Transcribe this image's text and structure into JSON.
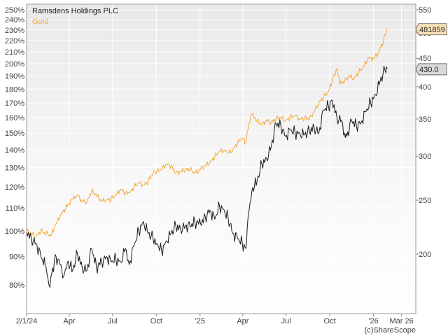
{
  "chart_data": {
    "type": "line",
    "title": "",
    "grid": true,
    "legend_placement": "top-left",
    "x_axis": {
      "min": "2024-01-02",
      "max": "2026-03-31",
      "ticks": [
        {
          "date": "2024-01-02",
          "label": "2/1/24"
        },
        {
          "date": "2024-04-01",
          "label": "Apr"
        },
        {
          "date": "2024-07-01",
          "label": "Jul"
        },
        {
          "date": "2024-10-01",
          "label": "Oct"
        },
        {
          "date": "2025-01-01",
          "label": "'25"
        },
        {
          "date": "2025-04-01",
          "label": "Apr"
        },
        {
          "date": "2025-07-01",
          "label": "Jul"
        },
        {
          "date": "2025-10-01",
          "label": "Oct"
        },
        {
          "date": "2026-01-01",
          "label": "'26"
        },
        {
          "date": "2026-03-01",
          "label": "Mar 26"
        }
      ]
    },
    "y_left": {
      "scale": "log",
      "range_percent": [
        72,
        252
      ],
      "ticks": [
        {
          "value": 80,
          "label": "80%"
        },
        {
          "value": 90,
          "label": "90%"
        },
        {
          "value": 100,
          "label": "100%"
        },
        {
          "value": 110,
          "label": "110%"
        },
        {
          "value": 120,
          "label": "120%"
        },
        {
          "value": 130,
          "label": "130%"
        },
        {
          "value": 140,
          "label": "140%"
        },
        {
          "value": 150,
          "label": "150%"
        },
        {
          "value": 160,
          "label": "160%"
        },
        {
          "value": 170,
          "label": "170%"
        },
        {
          "value": 180,
          "label": "180%"
        },
        {
          "value": 190,
          "label": "190%"
        },
        {
          "value": 200,
          "label": "200%"
        },
        {
          "value": 210,
          "label": "210%"
        },
        {
          "value": 220,
          "label": "220%"
        },
        {
          "value": 230,
          "label": "230%"
        },
        {
          "value": 240,
          "label": "240%"
        },
        {
          "value": 250,
          "label": "250%"
        }
      ]
    },
    "y_right": {
      "scale": "log",
      "ticks": [
        {
          "value": 200,
          "label": "200"
        },
        {
          "value": 250,
          "label": "250"
        },
        {
          "value": 300,
          "label": "300"
        },
        {
          "value": 350,
          "label": "350"
        },
        {
          "value": 400,
          "label": "400"
        },
        {
          "value": 450,
          "label": "450"
        },
        {
          "value": 500,
          "label": "500"
        },
        {
          "value": 550,
          "label": "550"
        }
      ]
    },
    "series": [
      {
        "name": "Ramsdens Holdings PLC",
        "color": "#1a1a1a",
        "last_value_label": "430.0",
        "points": [
          [
            "2024-01-02",
            100
          ],
          [
            "2024-01-12",
            97
          ],
          [
            "2024-01-22",
            95
          ],
          [
            "2024-02-01",
            90
          ],
          [
            "2024-02-12",
            86
          ],
          [
            "2024-02-18",
            80
          ],
          [
            "2024-02-24",
            84
          ],
          [
            "2024-03-04",
            90
          ],
          [
            "2024-03-14",
            87
          ],
          [
            "2024-03-20",
            83
          ],
          [
            "2024-03-28",
            88
          ],
          [
            "2024-04-08",
            85
          ],
          [
            "2024-04-18",
            91
          ],
          [
            "2024-04-28",
            86
          ],
          [
            "2024-05-08",
            85
          ],
          [
            "2024-05-18",
            93
          ],
          [
            "2024-05-28",
            86
          ],
          [
            "2024-06-08",
            88
          ],
          [
            "2024-06-18",
            90
          ],
          [
            "2024-06-28",
            88
          ],
          [
            "2024-07-08",
            89
          ],
          [
            "2024-07-18",
            88
          ],
          [
            "2024-07-28",
            93
          ],
          [
            "2024-08-05",
            87
          ],
          [
            "2024-08-15",
            94
          ],
          [
            "2024-08-25",
            100
          ],
          [
            "2024-09-04",
            104
          ],
          [
            "2024-09-14",
            99
          ],
          [
            "2024-09-24",
            97
          ],
          [
            "2024-10-02",
            95
          ],
          [
            "2024-10-12",
            92
          ],
          [
            "2024-10-22",
            96
          ],
          [
            "2024-11-01",
            99
          ],
          [
            "2024-11-11",
            102
          ],
          [
            "2024-11-21",
            101
          ],
          [
            "2024-12-01",
            102
          ],
          [
            "2024-12-11",
            102
          ],
          [
            "2024-12-21",
            104
          ],
          [
            "2025-01-02",
            103
          ],
          [
            "2025-01-12",
            106
          ],
          [
            "2025-01-22",
            109
          ],
          [
            "2025-02-01",
            105
          ],
          [
            "2025-02-11",
            111
          ],
          [
            "2025-02-21",
            109
          ],
          [
            "2025-03-01",
            106
          ],
          [
            "2025-03-11",
            99
          ],
          [
            "2025-03-21",
            97
          ],
          [
            "2025-03-31",
            95
          ],
          [
            "2025-04-07",
            93
          ],
          [
            "2025-04-12",
            106
          ],
          [
            "2025-04-20",
            118
          ],
          [
            "2025-05-01",
            123
          ],
          [
            "2025-05-11",
            132
          ],
          [
            "2025-05-21",
            135
          ],
          [
            "2025-05-31",
            142
          ],
          [
            "2025-06-10",
            156
          ],
          [
            "2025-06-20",
            155
          ],
          [
            "2025-06-30",
            148
          ],
          [
            "2025-07-10",
            152
          ],
          [
            "2025-07-20",
            150
          ],
          [
            "2025-07-30",
            150
          ],
          [
            "2025-08-09",
            149
          ],
          [
            "2025-08-19",
            151
          ],
          [
            "2025-08-29",
            154
          ],
          [
            "2025-09-08",
            150
          ],
          [
            "2025-09-18",
            165
          ],
          [
            "2025-09-28",
            168
          ],
          [
            "2025-10-06",
            172
          ],
          [
            "2025-10-16",
            160
          ],
          [
            "2025-10-26",
            158
          ],
          [
            "2025-11-01",
            150
          ],
          [
            "2025-11-06",
            148
          ],
          [
            "2025-11-16",
            158
          ],
          [
            "2025-11-26",
            155
          ],
          [
            "2025-12-06",
            157
          ],
          [
            "2025-12-16",
            164
          ],
          [
            "2025-12-26",
            170
          ],
          [
            "2026-01-05",
            176
          ],
          [
            "2026-01-15",
            186
          ],
          [
            "2026-01-25",
            195
          ],
          [
            "2026-01-30",
            196
          ]
        ]
      },
      {
        "name": "Gold",
        "color": "#f2a93b",
        "last_value_label": "481859",
        "points": [
          [
            "2024-01-02",
            100
          ],
          [
            "2024-01-12",
            99
          ],
          [
            "2024-01-22",
            98
          ],
          [
            "2024-02-01",
            100
          ],
          [
            "2024-02-12",
            99
          ],
          [
            "2024-02-22",
            98
          ],
          [
            "2024-03-04",
            103
          ],
          [
            "2024-03-14",
            107
          ],
          [
            "2024-03-24",
            110
          ],
          [
            "2024-04-08",
            114
          ],
          [
            "2024-04-18",
            116
          ],
          [
            "2024-04-28",
            113
          ],
          [
            "2024-05-08",
            113
          ],
          [
            "2024-05-18",
            118
          ],
          [
            "2024-05-28",
            116
          ],
          [
            "2024-06-08",
            113
          ],
          [
            "2024-06-18",
            114
          ],
          [
            "2024-06-28",
            114
          ],
          [
            "2024-07-08",
            116
          ],
          [
            "2024-07-18",
            119
          ],
          [
            "2024-07-28",
            117
          ],
          [
            "2024-08-05",
            117
          ],
          [
            "2024-08-15",
            120
          ],
          [
            "2024-08-25",
            122
          ],
          [
            "2024-09-04",
            121
          ],
          [
            "2024-09-14",
            123
          ],
          [
            "2024-09-24",
            127
          ],
          [
            "2024-10-02",
            128
          ],
          [
            "2024-10-12",
            129
          ],
          [
            "2024-10-22",
            132
          ],
          [
            "2024-11-01",
            131
          ],
          [
            "2024-11-11",
            127
          ],
          [
            "2024-11-21",
            128
          ],
          [
            "2024-12-01",
            129
          ],
          [
            "2024-12-11",
            129
          ],
          [
            "2024-12-21",
            127
          ],
          [
            "2025-01-02",
            129
          ],
          [
            "2025-01-12",
            131
          ],
          [
            "2025-01-22",
            133
          ],
          [
            "2025-02-01",
            136
          ],
          [
            "2025-02-11",
            139
          ],
          [
            "2025-02-21",
            140
          ],
          [
            "2025-03-01",
            138
          ],
          [
            "2025-03-11",
            140
          ],
          [
            "2025-03-21",
            144
          ],
          [
            "2025-03-31",
            147
          ],
          [
            "2025-04-07",
            144
          ],
          [
            "2025-04-14",
            156
          ],
          [
            "2025-04-20",
            162
          ],
          [
            "2025-05-01",
            158
          ],
          [
            "2025-05-11",
            155
          ],
          [
            "2025-05-21",
            158
          ],
          [
            "2025-05-31",
            157
          ],
          [
            "2025-06-10",
            159
          ],
          [
            "2025-06-20",
            160
          ],
          [
            "2025-06-30",
            158
          ],
          [
            "2025-07-10",
            160
          ],
          [
            "2025-07-20",
            161
          ],
          [
            "2025-07-30",
            159
          ],
          [
            "2025-08-09",
            160
          ],
          [
            "2025-08-19",
            159
          ],
          [
            "2025-08-29",
            164
          ],
          [
            "2025-09-08",
            170
          ],
          [
            "2025-09-18",
            174
          ],
          [
            "2025-09-28",
            178
          ],
          [
            "2025-10-06",
            186
          ],
          [
            "2025-10-16 ",
            196
          ],
          [
            "2025-10-22",
            184
          ],
          [
            "2025-11-01",
            186
          ],
          [
            "2025-11-11",
            190
          ],
          [
            "2025-11-21",
            188
          ],
          [
            "2025-12-01",
            193
          ],
          [
            "2025-12-11",
            197
          ],
          [
            "2025-12-21",
            205
          ],
          [
            "2026-01-02",
            204
          ],
          [
            "2026-01-12",
            210
          ],
          [
            "2026-01-22",
            220
          ],
          [
            "2026-01-30",
            232
          ]
        ]
      }
    ]
  },
  "watermark": "(c)ShareScope"
}
